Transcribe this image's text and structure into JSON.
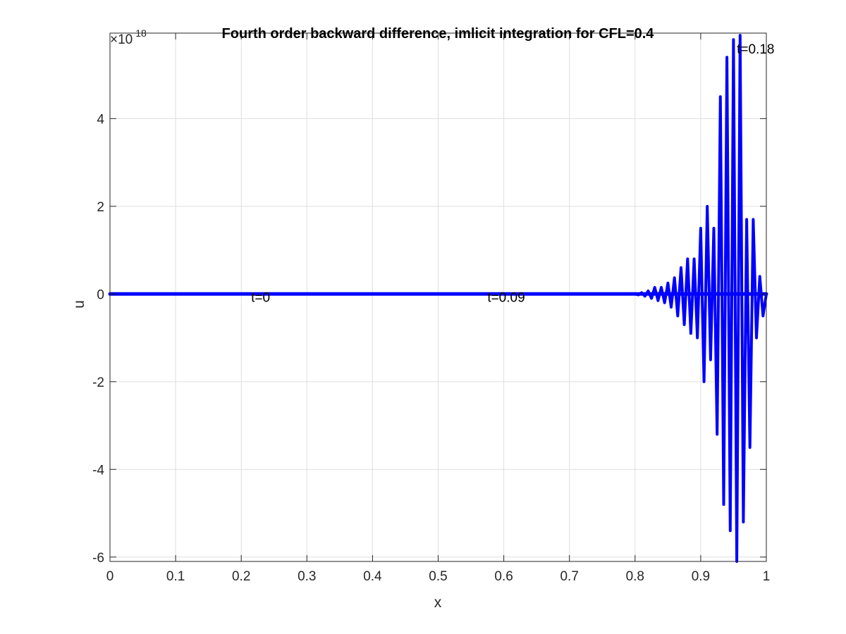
{
  "chart_data": {
    "type": "line",
    "title": "Fourth order backward difference, imlicit integration for CFL=0.4",
    "xlabel": "x",
    "ylabel": "u",
    "xlim": [
      0,
      1
    ],
    "ylim": [
      -6.1e+18,
      5.95e+18
    ],
    "x_ticks": [
      0,
      0.1,
      0.2,
      0.3,
      0.4,
      0.5,
      0.6,
      0.7,
      0.8,
      0.9,
      1
    ],
    "x_tick_labels": [
      "0",
      "0.1",
      "0.2",
      "0.3",
      "0.4",
      "0.5",
      "0.6",
      "0.7",
      "0.8",
      "0.9",
      "1"
    ],
    "y_ticks": [
      -6,
      -4,
      -2,
      0,
      2,
      4
    ],
    "y_tick_labels": [
      "-6",
      "-4",
      "-2",
      "0",
      "2",
      "4"
    ],
    "y_multiplier": {
      "prefix": "×10",
      "exponent": "18"
    },
    "grid": true,
    "line_color": "#0000ff",
    "annotations": [
      {
        "text": "t=0",
        "x": 0.215,
        "y": 0
      },
      {
        "text": "t=0.09",
        "x": 0.575,
        "y": 0
      },
      {
        "text": "t=0.18",
        "x": 0.955,
        "y": 5.95e+18
      }
    ],
    "series": [
      {
        "x": [
          0,
          0.8,
          0.805,
          0.81,
          0.815,
          0.82,
          0.825,
          0.83,
          0.835,
          0.84,
          0.845,
          0.85,
          0.855,
          0.86,
          0.865,
          0.87,
          0.875,
          0.88,
          0.885,
          0.89,
          0.895,
          0.9,
          0.905,
          0.91,
          0.915,
          0.92,
          0.925,
          0.93,
          0.935,
          0.94,
          0.945,
          0.95,
          0.955,
          0.96,
          0.965,
          0.97,
          0.975,
          0.98,
          0.985,
          0.99,
          0.995,
          1
        ],
        "values": [
          0,
          0,
          -2e+16,
          3e+16,
          -5e+16,
          7e+16,
          -1e+17,
          1.5e+17,
          -1.5e+17,
          1.5e+17,
          -2e+17,
          2.5e+17,
          -3e+17,
          3.7e+17,
          -5e+17,
          6e+17,
          -7e+17,
          8e+17,
          -9e+17,
          8e+17,
          -1e+18,
          1.5e+18,
          -2e+18,
          2e+18,
          -1.5e+18,
          1.5e+18,
          -3.2e+18,
          4.5e+18,
          -4.8e+18,
          5.4e+18,
          -5.4e+18,
          5.8e+18,
          -6.1e+18,
          5.9e+18,
          -5.2e+18,
          1.7e+18,
          -3.5e+18,
          1.7e+18,
          -1e+18,
          4e+17,
          -5e+17,
          0
        ]
      },
      {
        "x": [
          0,
          1
        ],
        "values": [
          0,
          0
        ]
      }
    ]
  }
}
